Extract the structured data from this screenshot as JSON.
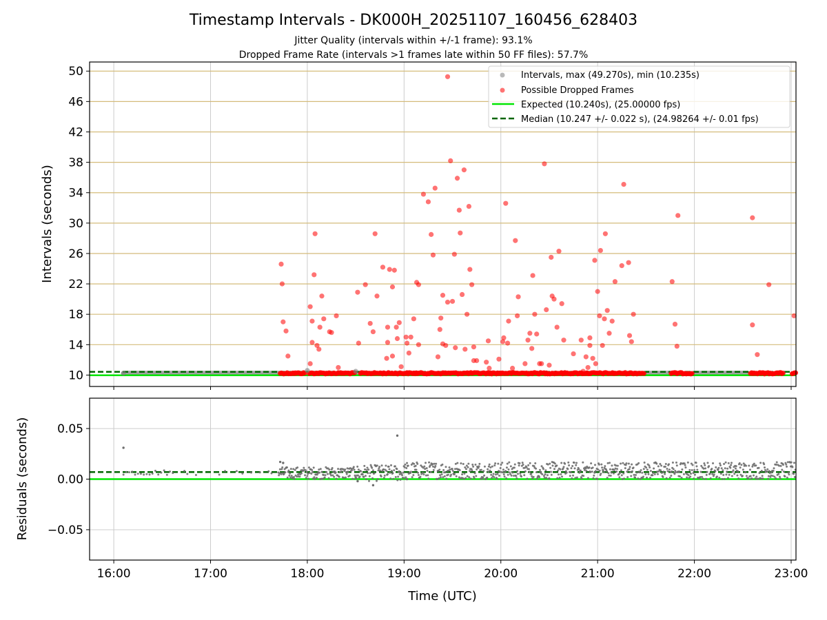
{
  "chart_data": [
    {
      "type": "scatter",
      "title": "Timestamp Intervals - DK000H_20251107_160456_628403",
      "subtitle_lines": [
        "Jitter Quality (intervals within +/-1 frame): 93.1%",
        "Dropped Frame Rate (intervals >1 frames late within 50 FF files): 57.7%"
      ],
      "ylabel": "Intervals (seconds)",
      "xlabel": "",
      "ylim": [
        8.5,
        51.2
      ],
      "xlim_hours": [
        15.75,
        23.05
      ],
      "yticks": [
        "10",
        "14",
        "18",
        "22",
        "26",
        "30",
        "34",
        "38",
        "42",
        "46",
        "50"
      ],
      "ytick_values": [
        10,
        14,
        18,
        22,
        26,
        30,
        34,
        38,
        42,
        46,
        50
      ],
      "xticks": [
        "16:00",
        "17:00",
        "18:00",
        "19:00",
        "20:00",
        "21:00",
        "22:00",
        "23:00"
      ],
      "xtick_hours": [
        16,
        17,
        18,
        19,
        20,
        21,
        22,
        23
      ],
      "grid": "on",
      "legend_position": "top-right",
      "legend": [
        "Intervals, max (49.270s), min (10.235s)",
        "Possible Dropped Frames",
        "Expected (10.240s), (25.00000 fps)",
        "Median (10.247 +/- 0.022 s), (24.98264 +/- 0.01 fps)"
      ],
      "expected_interval": 10.24,
      "median_interval": 10.247,
      "max_interval": 49.27,
      "min_interval": 10.235,
      "normal_interval_segments_hours": [
        [
          16.1,
          17.75
        ],
        [
          18.45,
          18.6
        ],
        [
          21.5,
          21.75
        ],
        [
          22.0,
          22.55
        ]
      ],
      "dropped_baseline_segments_hours": [
        [
          17.72,
          17.98
        ],
        [
          18.02,
          18.5
        ],
        [
          18.55,
          21.48
        ],
        [
          21.76,
          21.98
        ],
        [
          22.58,
          22.92
        ],
        [
          23.01,
          23.05
        ]
      ],
      "dropped_frames": [
        [
          17.73,
          24.6
        ],
        [
          17.74,
          22.0
        ],
        [
          17.75,
          17.0
        ],
        [
          17.78,
          15.8
        ],
        [
          17.8,
          12.5
        ],
        [
          18.03,
          19.0
        ],
        [
          18.03,
          11.5
        ],
        [
          18.05,
          17.1
        ],
        [
          18.05,
          14.3
        ],
        [
          18.07,
          23.2
        ],
        [
          18.08,
          28.6
        ],
        [
          18.1,
          13.9
        ],
        [
          18.12,
          13.4
        ],
        [
          18.13,
          16.3
        ],
        [
          18.15,
          20.4
        ],
        [
          18.17,
          17.4
        ],
        [
          18.23,
          15.7
        ],
        [
          18.25,
          15.6
        ],
        [
          18.3,
          17.8
        ],
        [
          18.32,
          11.0
        ],
        [
          18.52,
          20.9
        ],
        [
          18.53,
          14.2
        ],
        [
          18.6,
          21.9
        ],
        [
          18.65,
          16.8
        ],
        [
          18.68,
          15.7
        ],
        [
          18.7,
          28.6
        ],
        [
          18.72,
          20.4
        ],
        [
          18.78,
          24.2
        ],
        [
          18.82,
          12.2
        ],
        [
          18.83,
          16.3
        ],
        [
          18.83,
          14.3
        ],
        [
          18.85,
          23.9
        ],
        [
          18.88,
          21.6
        ],
        [
          18.88,
          12.5
        ],
        [
          18.9,
          23.8
        ],
        [
          18.92,
          16.3
        ],
        [
          18.95,
          16.9
        ],
        [
          18.93,
          14.8
        ],
        [
          18.97,
          11.1
        ],
        [
          19.02,
          15.0
        ],
        [
          19.03,
          14.2
        ],
        [
          19.05,
          12.9
        ],
        [
          19.07,
          15.0
        ],
        [
          19.1,
          17.4
        ],
        [
          19.13,
          22.2
        ],
        [
          19.15,
          21.9
        ],
        [
          19.15,
          14.0
        ],
        [
          19.2,
          33.8
        ],
        [
          19.25,
          32.8
        ],
        [
          19.28,
          28.5
        ],
        [
          19.3,
          25.8
        ],
        [
          19.32,
          34.6
        ],
        [
          19.35,
          12.4
        ],
        [
          19.37,
          16.0
        ],
        [
          19.38,
          17.5
        ],
        [
          19.4,
          20.5
        ],
        [
          19.4,
          14.1
        ],
        [
          19.43,
          13.9
        ],
        [
          19.45,
          19.6
        ],
        [
          19.45,
          49.27
        ],
        [
          19.48,
          38.2
        ],
        [
          19.5,
          19.7
        ],
        [
          19.52,
          25.9
        ],
        [
          19.53,
          13.6
        ],
        [
          19.55,
          35.9
        ],
        [
          19.57,
          31.7
        ],
        [
          19.58,
          28.7
        ],
        [
          19.6,
          20.6
        ],
        [
          19.62,
          37.0
        ],
        [
          19.63,
          13.4
        ],
        [
          19.65,
          18.0
        ],
        [
          19.67,
          32.2
        ],
        [
          19.68,
          23.9
        ],
        [
          19.7,
          21.9
        ],
        [
          19.72,
          13.7
        ],
        [
          19.72,
          11.9
        ],
        [
          19.75,
          11.9
        ],
        [
          19.85,
          11.7
        ],
        [
          19.87,
          14.5
        ],
        [
          19.88,
          10.9
        ],
        [
          19.98,
          12.1
        ],
        [
          20.02,
          14.4
        ],
        [
          20.03,
          14.9
        ],
        [
          20.05,
          32.6
        ],
        [
          20.07,
          14.2
        ],
        [
          20.08,
          17.1
        ],
        [
          20.12,
          10.9
        ],
        [
          20.15,
          27.7
        ],
        [
          20.17,
          17.8
        ],
        [
          20.18,
          20.3
        ],
        [
          20.25,
          11.5
        ],
        [
          20.28,
          14.6
        ],
        [
          20.3,
          15.5
        ],
        [
          20.32,
          13.5
        ],
        [
          20.33,
          23.1
        ],
        [
          20.35,
          18.0
        ],
        [
          20.37,
          15.4
        ],
        [
          20.4,
          11.5
        ],
        [
          20.42,
          11.5
        ],
        [
          20.45,
          37.8
        ],
        [
          20.47,
          18.6
        ],
        [
          20.5,
          11.3
        ],
        [
          20.52,
          25.5
        ],
        [
          20.53,
          20.4
        ],
        [
          20.55,
          20.0
        ],
        [
          20.58,
          16.3
        ],
        [
          20.6,
          26.3
        ],
        [
          20.63,
          19.4
        ],
        [
          20.65,
          14.6
        ],
        [
          20.75,
          12.8
        ],
        [
          20.83,
          14.6
        ],
        [
          20.85,
          10.5
        ],
        [
          20.88,
          12.4
        ],
        [
          20.9,
          11.0
        ],
        [
          20.92,
          14.9
        ],
        [
          20.92,
          13.9
        ],
        [
          20.95,
          12.2
        ],
        [
          20.97,
          25.1
        ],
        [
          20.98,
          11.5
        ],
        [
          21.0,
          21.0
        ],
        [
          21.02,
          17.8
        ],
        [
          21.03,
          26.4
        ],
        [
          21.05,
          13.9
        ],
        [
          21.07,
          17.4
        ],
        [
          21.08,
          28.6
        ],
        [
          21.1,
          18.5
        ],
        [
          21.12,
          15.5
        ],
        [
          21.15,
          17.1
        ],
        [
          21.18,
          22.3
        ],
        [
          21.25,
          24.4
        ],
        [
          21.27,
          35.1
        ],
        [
          21.32,
          24.8
        ],
        [
          21.33,
          15.2
        ],
        [
          21.35,
          14.4
        ],
        [
          21.37,
          18.0
        ],
        [
          21.77,
          22.3
        ],
        [
          21.8,
          16.7
        ],
        [
          21.82,
          13.8
        ],
        [
          21.83,
          31.0
        ],
        [
          22.6,
          30.7
        ],
        [
          22.6,
          16.6
        ],
        [
          22.65,
          12.7
        ],
        [
          22.77,
          21.9
        ],
        [
          23.03,
          17.8
        ]
      ]
    },
    {
      "type": "scatter",
      "title": "",
      "xlabel": "Time (UTC)",
      "ylabel": "Residuals (seconds)",
      "ylim": [
        -0.08,
        0.08
      ],
      "xlim_hours": [
        15.75,
        23.05
      ],
      "yticks": [
        "0.05",
        "0.00",
        "−0.05"
      ],
      "ytick_values": [
        0.05,
        0.0,
        -0.05
      ],
      "xticks": [
        "16:00",
        "17:00",
        "18:00",
        "19:00",
        "20:00",
        "21:00",
        "22:00",
        "23:00"
      ],
      "xtick_hours": [
        16,
        17,
        18,
        19,
        20,
        21,
        22,
        23
      ],
      "grid": "on",
      "expected_residual": 0.0,
      "median_residual": 0.007,
      "outliers": [
        [
          16.1,
          0.031
        ],
        [
          18.93,
          0.043
        ],
        [
          18.68,
          -0.006
        ],
        [
          18.52,
          -0.002
        ],
        [
          19.03,
          0.0
        ],
        [
          17.72,
          0.017
        ],
        [
          17.75,
          0.016
        ]
      ],
      "bands_hours_and_ranges": [
        [
          16.1,
          17.7,
          0.004,
          0.009
        ],
        [
          17.7,
          18.5,
          0.0,
          0.012
        ],
        [
          18.5,
          19.0,
          -0.002,
          0.014
        ],
        [
          19.0,
          23.05,
          0.0,
          0.017
        ]
      ]
    }
  ],
  "colors": {
    "expected": "#00e600",
    "median": "#006400",
    "dropped": "#ff0000",
    "interval": "#808080",
    "grid_major": "#d4bb7a",
    "grid": "#cccccc",
    "residual": "#6e6e6e"
  }
}
